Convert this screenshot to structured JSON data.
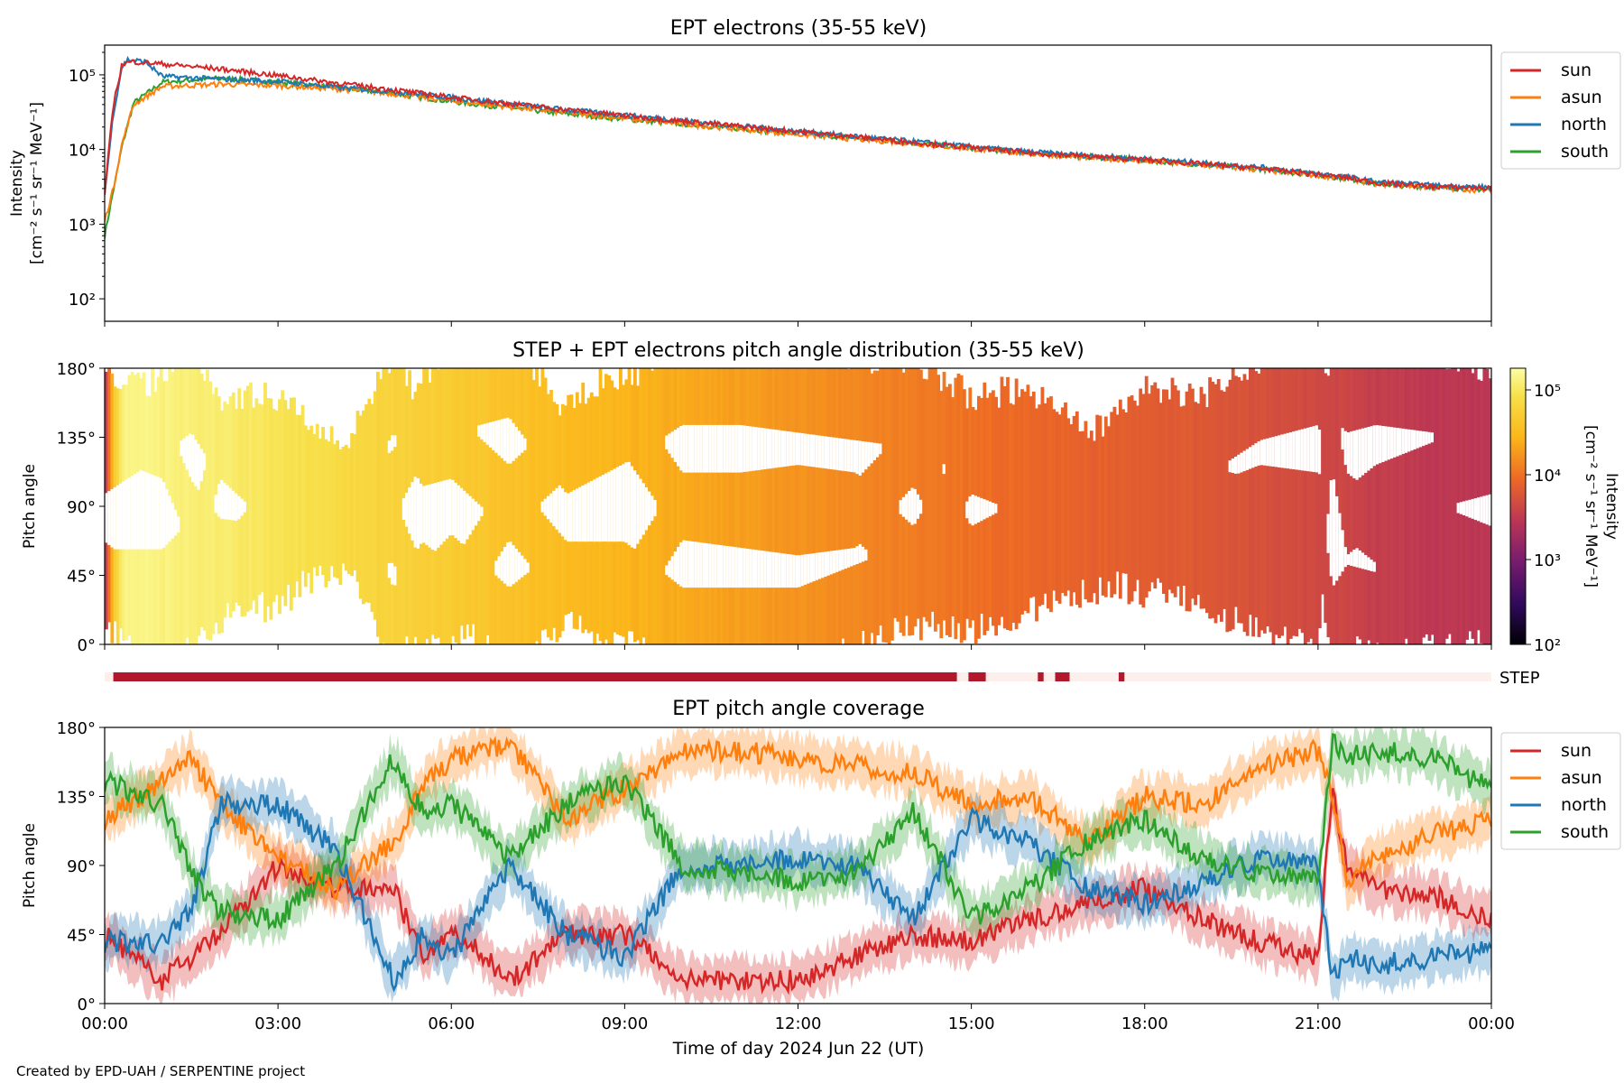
{
  "chart_data": [
    {
      "type": "line",
      "title": "EPT electrons (35-55 keV)",
      "ylabel_line1": "Intensity",
      "ylabel_line2": "[cm⁻² s⁻¹ sr⁻¹ MeV⁻¹]",
      "yscale": "log",
      "ylim": [
        50,
        250000
      ],
      "yticks": [
        "10²",
        "10³",
        "10⁴",
        "10⁵"
      ],
      "x_unit": "hours since 2024-06-22 00:00 UT",
      "xlim": [
        0,
        24
      ],
      "legend_position": "outside right, top",
      "series": [
        {
          "name": "sun",
          "color": "#d62728",
          "x": [
            0,
            0.15,
            0.3,
            0.5,
            1,
            2,
            3,
            4,
            5,
            6,
            8,
            10,
            12,
            14,
            16,
            18,
            20,
            21.5,
            22,
            23,
            24
          ],
          "y": [
            2500,
            40000,
            140000,
            150000,
            140000,
            120000,
            98000,
            78000,
            63000,
            50000,
            34000,
            24000,
            17500,
            12500,
            9000,
            7300,
            5600,
            4200,
            3600,
            3200,
            3000
          ]
        },
        {
          "name": "asun",
          "color": "#ff7f0e",
          "x": [
            0,
            0.15,
            0.3,
            0.5,
            1,
            2,
            3,
            4,
            5,
            6,
            8,
            10,
            12,
            14,
            16,
            18,
            20,
            21.5,
            22,
            23,
            24
          ],
          "y": [
            1100,
            3000,
            12000,
            40000,
            70000,
            75000,
            72000,
            65000,
            56000,
            45000,
            31000,
            22000,
            16000,
            12000,
            8800,
            7000,
            5400,
            4100,
            3500,
            3100,
            2800
          ]
        },
        {
          "name": "north",
          "color": "#1f77b4",
          "x": [
            0,
            0.15,
            0.3,
            0.4,
            0.7,
            1,
            2,
            3,
            4,
            5,
            6,
            8,
            10,
            12,
            14,
            16,
            18,
            20,
            21.5,
            22,
            23,
            24
          ],
          "y": [
            2500,
            30000,
            130000,
            160000,
            150000,
            95000,
            88000,
            82000,
            68000,
            60000,
            50000,
            34000,
            24500,
            17500,
            12800,
            9300,
            7500,
            5800,
            4300,
            3700,
            3300,
            3100
          ]
        },
        {
          "name": "south",
          "color": "#2ca02c",
          "x": [
            0,
            0.15,
            0.3,
            0.5,
            1,
            2,
            3,
            4,
            5,
            6,
            8,
            10,
            12,
            14,
            16,
            18,
            20,
            21.5,
            22,
            23,
            24
          ],
          "y": [
            700,
            2800,
            11000,
            42000,
            80000,
            90000,
            80000,
            68000,
            56000,
            44000,
            30000,
            22000,
            16500,
            12300,
            9000,
            7200,
            5500,
            4100,
            3500,
            3100,
            2900
          ]
        }
      ]
    },
    {
      "type": "heatmap",
      "title": "STEP + EPT electrons pitch angle distribution (35-55 keV)",
      "ylabel": "Pitch angle",
      "ylim": [
        0,
        180
      ],
      "yticks": [
        "0°",
        "45°",
        "90°",
        "135°",
        "180°"
      ],
      "xlim": [
        0,
        24
      ],
      "colorbar": {
        "label_line1": "Intensity",
        "label_line2": "[cm⁻² s⁻¹ sr⁻¹ MeV⁻¹]",
        "scale": "log",
        "range": [
          100,
          180000
        ],
        "ticks": [
          "10²",
          "10³",
          "10⁴",
          "10⁵"
        ],
        "colormap": "inferno"
      }
    },
    {
      "type": "bar",
      "label": "STEP",
      "color": "#b2182b",
      "background": "#fdf0ec",
      "active_intervals_hours": [
        [
          0.15,
          14.75
        ],
        [
          14.95,
          15.25
        ],
        [
          16.15,
          16.25
        ],
        [
          16.45,
          16.7
        ],
        [
          17.55,
          17.65
        ]
      ]
    },
    {
      "type": "area",
      "title": "EPT pitch angle coverage",
      "xlabel": "Time of day 2024 Jun 22 (UT)",
      "ylabel": "Pitch angle",
      "ylim": [
        0,
        180
      ],
      "yticks": [
        "0°",
        "45°",
        "90°",
        "135°",
        "180°"
      ],
      "xticks": [
        "00:00",
        "03:00",
        "06:00",
        "09:00",
        "12:00",
        "15:00",
        "18:00",
        "21:00",
        "00:00"
      ],
      "legend_position": "outside right, top",
      "series": [
        {
          "name": "sun",
          "color": "#d62728",
          "x": [
            0,
            1,
            2,
            3,
            4,
            5,
            5.5,
            6,
            7,
            8,
            9,
            10,
            11,
            12,
            13,
            14,
            15,
            16,
            17,
            18,
            19,
            20,
            21,
            21.25,
            21.5,
            22,
            23,
            24
          ],
          "y": [
            45,
            15,
            45,
            90,
            75,
            75,
            30,
            50,
            15,
            45,
            45,
            15,
            15,
            15,
            30,
            45,
            40,
            55,
            65,
            75,
            55,
            40,
            30,
            140,
            90,
            75,
            70,
            55
          ]
        },
        {
          "name": "asun",
          "color": "#ff7f0e",
          "x": [
            0,
            1,
            1.5,
            2,
            3,
            4,
            5,
            5.5,
            6,
            7,
            8,
            9,
            10,
            11,
            12,
            13,
            14,
            15,
            16,
            17,
            18,
            19,
            20,
            21,
            21.25,
            21.5,
            22,
            23,
            24
          ],
          "y": [
            120,
            145,
            160,
            130,
            95,
            75,
            105,
            140,
            160,
            170,
            120,
            140,
            165,
            165,
            160,
            155,
            150,
            130,
            135,
            105,
            135,
            130,
            155,
            165,
            135,
            80,
            95,
            110,
            120
          ]
        },
        {
          "name": "north",
          "color": "#1f77b4",
          "x": [
            0,
            1,
            1.5,
            2,
            3,
            4,
            5,
            5.5,
            6,
            7,
            8,
            9,
            10,
            11,
            12,
            13,
            14,
            15,
            16,
            17,
            18,
            19,
            20,
            21,
            21.25,
            21.5,
            22,
            23,
            24
          ],
          "y": [
            40,
            40,
            60,
            130,
            130,
            100,
            15,
            45,
            30,
            90,
            45,
            30,
            90,
            90,
            95,
            90,
            55,
            120,
            105,
            75,
            65,
            80,
            95,
            90,
            15,
            30,
            25,
            30,
            35
          ]
        },
        {
          "name": "south",
          "color": "#2ca02c",
          "x": [
            0,
            1,
            1.5,
            2,
            3,
            4,
            5,
            5.5,
            6,
            7,
            8,
            9,
            10,
            11,
            12,
            13,
            14,
            15,
            16,
            17,
            18,
            19,
            20,
            21,
            21.25,
            21.5,
            22,
            23,
            24
          ],
          "y": [
            145,
            130,
            85,
            60,
            55,
            90,
            160,
            125,
            130,
            95,
            130,
            145,
            90,
            85,
            80,
            85,
            125,
            55,
            75,
            105,
            120,
            95,
            85,
            80,
            170,
            160,
            165,
            160,
            140
          ]
        }
      ]
    }
  ],
  "credit": "Created by EPD-UAH / SERPENTINE project",
  "colors": {
    "sun": "#d62728",
    "asun": "#ff7f0e",
    "north": "#1f77b4",
    "south": "#2ca02c",
    "step": "#b2182b"
  }
}
